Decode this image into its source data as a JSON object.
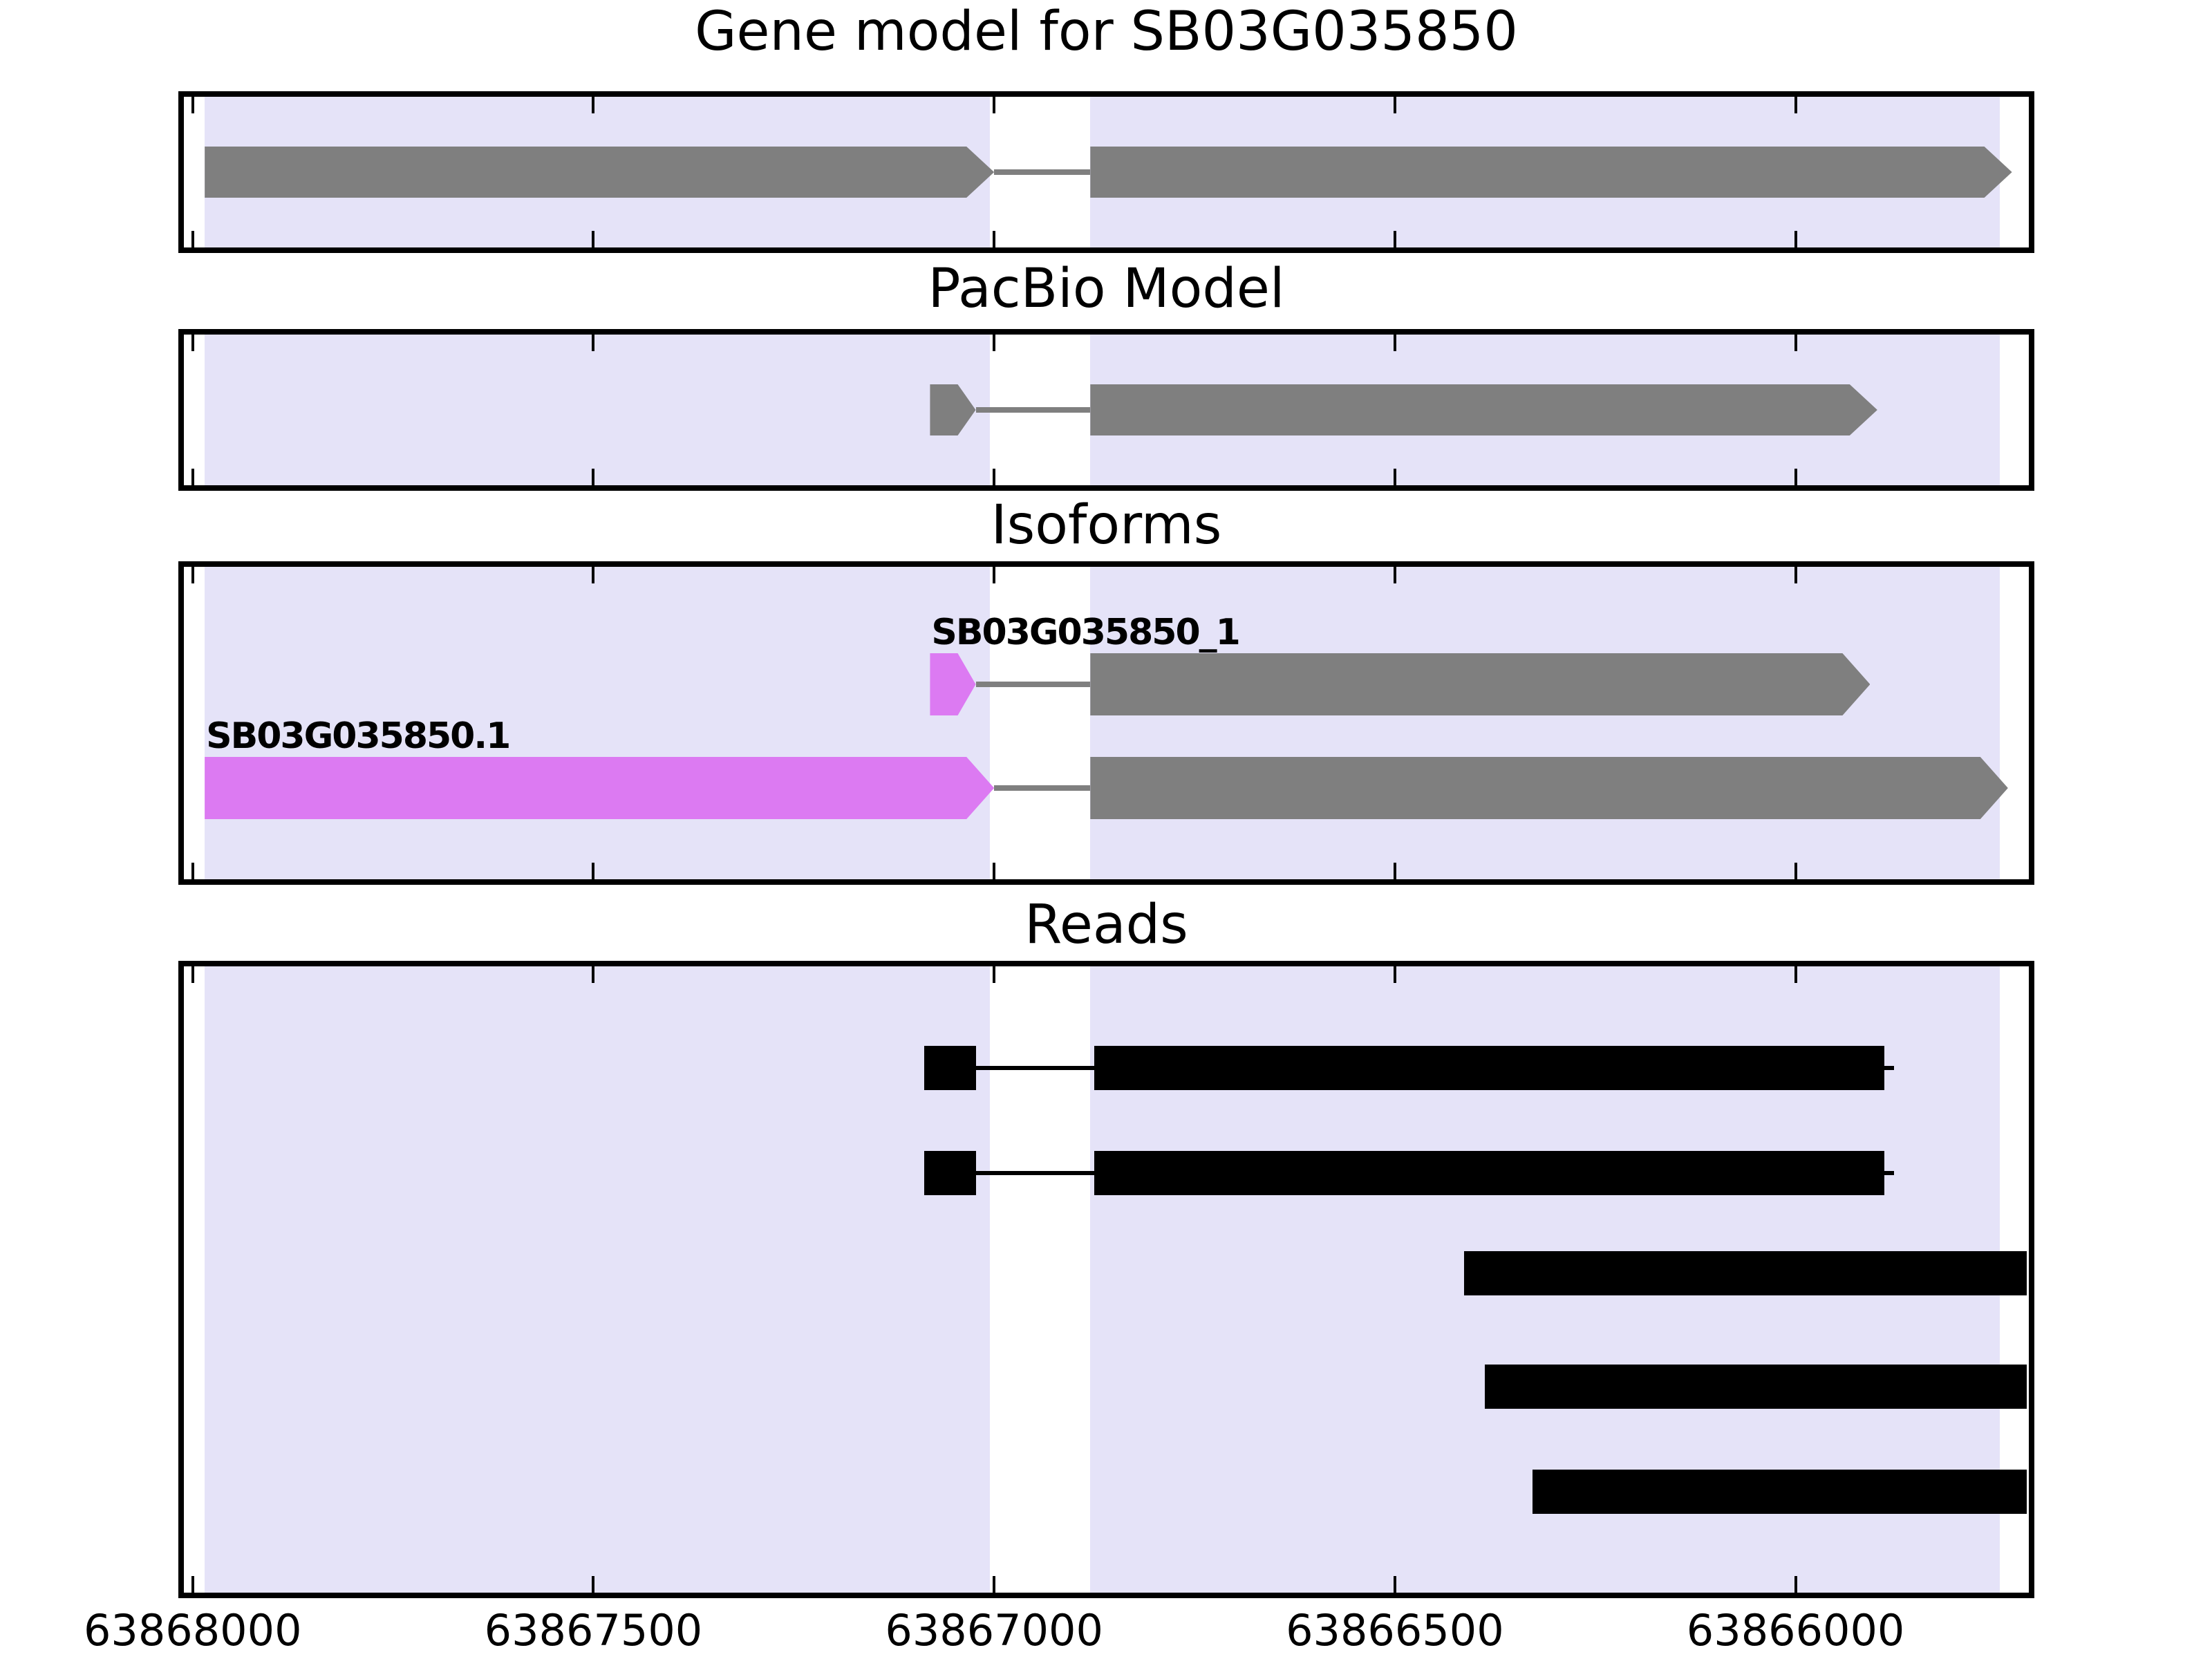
{
  "chart_data": {
    "type": "gene-model-tracks",
    "title": "Gene model for SB03G035850",
    "x_axis": {
      "direction": "decreasing",
      "domain": [
        63868011,
        63865709
      ],
      "tick_values": [
        63868000,
        63867500,
        63867000,
        63866500,
        63866000
      ],
      "tick_labels": [
        "63868000",
        "63867500",
        "63867000",
        "63866500",
        "63866000"
      ]
    },
    "highlight_regions": [
      {
        "start": 63867985,
        "end": 63867005
      },
      {
        "start": 63866880,
        "end": 63865745
      }
    ],
    "colors": {
      "exon_gray": "#7f7f7f",
      "intron_gray": "#7f7f7f",
      "isoform_magenta": "#DC7AF2",
      "read_black": "#000000",
      "region_highlight": "#E5E3F8",
      "axis": "#000000",
      "background": "#ffffff"
    },
    "panels": [
      {
        "title": "Gene model for SB03G035850",
        "features": [
          {
            "type": "exon",
            "shape": "arrow",
            "row": 0,
            "start": 63867985,
            "end": 63867000,
            "color": "exon_gray"
          },
          {
            "type": "intron",
            "row": 0,
            "start": 63867000,
            "end": 63866880,
            "color": "intron_gray"
          },
          {
            "type": "exon",
            "shape": "arrow",
            "row": 0,
            "start": 63866880,
            "end": 63865730,
            "color": "exon_gray"
          }
        ]
      },
      {
        "title": "PacBio Model",
        "features": [
          {
            "type": "exon",
            "shape": "arrow",
            "row": 0,
            "start": 63867080,
            "end": 63867023,
            "color": "exon_gray"
          },
          {
            "type": "intron",
            "row": 0,
            "start": 63867023,
            "end": 63866880,
            "color": "intron_gray"
          },
          {
            "type": "exon",
            "shape": "arrow",
            "row": 0,
            "start": 63866880,
            "end": 63865898,
            "color": "exon_gray"
          }
        ]
      },
      {
        "title": "Isoforms",
        "features": [
          {
            "type": "exon",
            "shape": "arrow",
            "row": 0,
            "start": 63867080,
            "end": 63867023,
            "color": "isoform_magenta",
            "label": "SB03G035850_1"
          },
          {
            "type": "intron",
            "row": 0,
            "start": 63867023,
            "end": 63866880,
            "color": "intron_gray"
          },
          {
            "type": "exon",
            "shape": "arrow",
            "row": 0,
            "start": 63866880,
            "end": 63865907,
            "color": "exon_gray"
          },
          {
            "type": "exon",
            "shape": "arrow",
            "row": 1,
            "start": 63867985,
            "end": 63867000,
            "color": "isoform_magenta",
            "label": "SB03G035850.1"
          },
          {
            "type": "intron",
            "row": 1,
            "start": 63867000,
            "end": 63866880,
            "color": "intron_gray"
          },
          {
            "type": "exon",
            "shape": "arrow",
            "row": 1,
            "start": 63866880,
            "end": 63865735,
            "color": "exon_gray"
          }
        ]
      },
      {
        "title": "Reads",
        "reads": [
          {
            "row": 0,
            "line": [
              63867087,
              63865877
            ],
            "segments": [
              [
                63867087,
                63867023
              ],
              [
                63866875,
                63865889
              ]
            ]
          },
          {
            "row": 1,
            "line": [
              63867087,
              63865877
            ],
            "segments": [
              [
                63867087,
                63867023
              ],
              [
                63866875,
                63865889
              ]
            ]
          },
          {
            "row": 2,
            "segments": [
              [
                63866414,
                63865712
              ]
            ]
          },
          {
            "row": 3,
            "segments": [
              [
                63866388,
                63865712
              ]
            ]
          },
          {
            "row": 4,
            "segments": [
              [
                63866328,
                63865712
              ]
            ]
          }
        ]
      }
    ]
  }
}
